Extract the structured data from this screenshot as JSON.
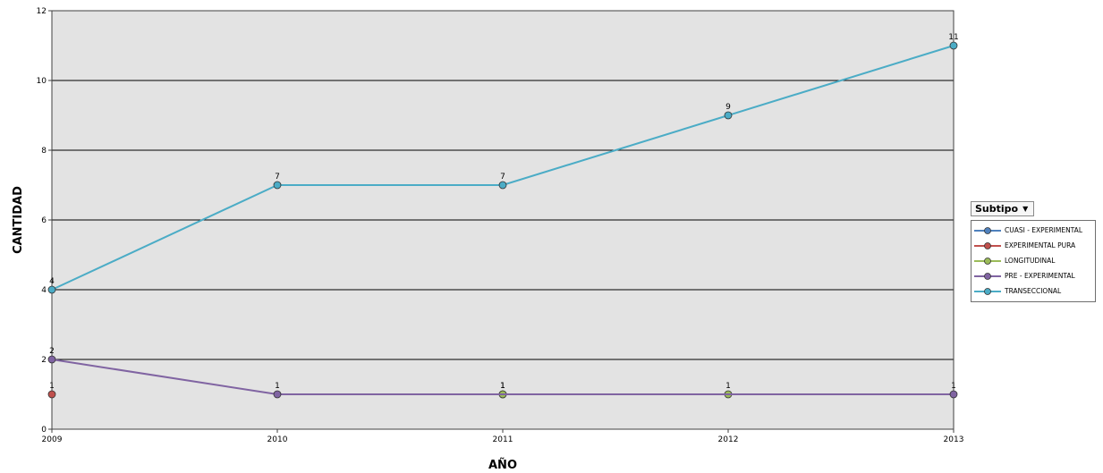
{
  "chart_data": {
    "type": "line",
    "xlabel": "AÑO",
    "ylabel": "CANTIDAD",
    "categories": [
      "2009",
      "2010",
      "2011",
      "2012",
      "2013"
    ],
    "ylim": [
      0,
      12
    ],
    "yticks": [
      "0",
      "2",
      "4",
      "6",
      "8",
      "10",
      "12"
    ],
    "grid": true,
    "legend_position": "right",
    "series": [
      {
        "name": "CUASI - EXPERIMENTAL",
        "color": "#4f81bd",
        "values": [
          null,
          null,
          1,
          null,
          null
        ]
      },
      {
        "name": "EXPERIMENTAL PURA",
        "color": "#c0504d",
        "values": [
          1,
          null,
          null,
          null,
          null
        ]
      },
      {
        "name": "LONGITUDINAL",
        "color": "#9bbb59",
        "values": [
          null,
          null,
          1,
          1,
          null
        ]
      },
      {
        "name": "PRE - EXPERIMENTAL",
        "color": "#8064a2",
        "values": [
          2,
          1,
          null,
          null,
          1
        ]
      },
      {
        "name": "TRANSECCIONAL",
        "color": "#4bacc6",
        "values": [
          4,
          7,
          7,
          9,
          11
        ]
      }
    ]
  },
  "legend": {
    "button_label": "Subtipo",
    "dropdown_icon": "caret-down-icon"
  }
}
